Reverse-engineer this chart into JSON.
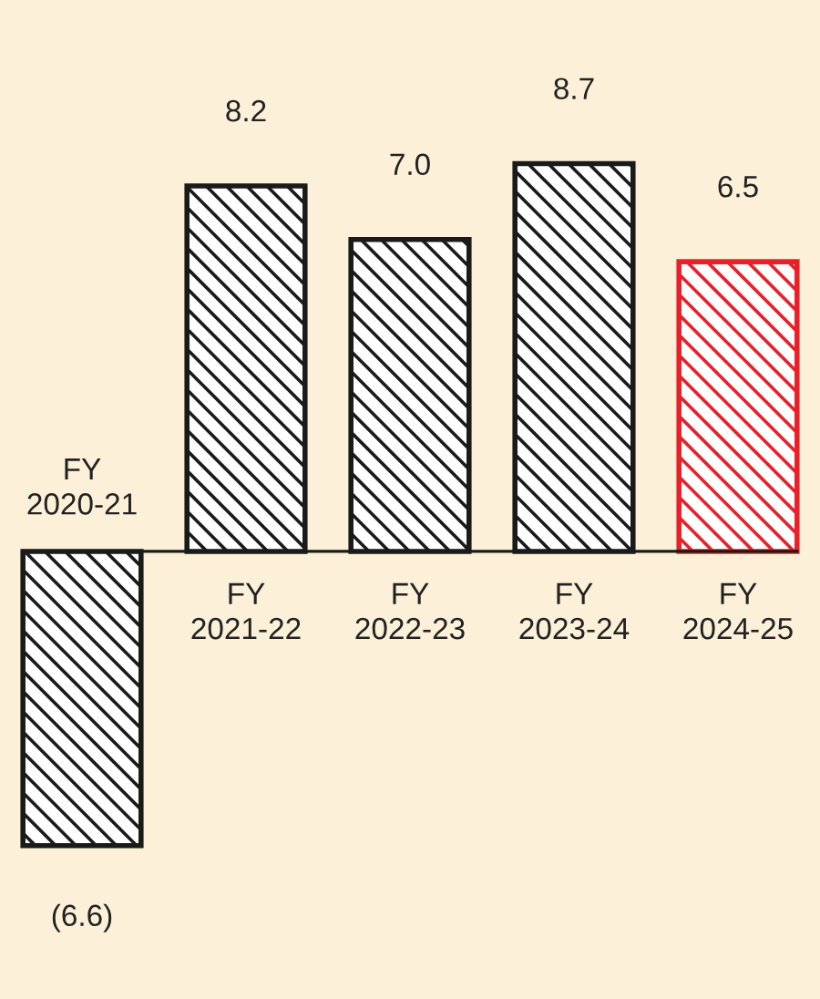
{
  "chart_data": {
    "type": "bar",
    "categories": [
      "FY\n2020-21",
      "FY\n2021-22",
      "FY\n2022-23",
      "FY\n2023-24",
      "FY\n2024-25"
    ],
    "values": [
      -6.6,
      8.2,
      7.0,
      8.7,
      6.5
    ],
    "colors": [
      "#1a1a1a",
      "#1a1a1a",
      "#1a1a1a",
      "#1a1a1a",
      "#e8202a"
    ],
    "value_labels": [
      "(6.6)",
      "8.2",
      "7.0",
      "8.7",
      "6.5"
    ]
  }
}
